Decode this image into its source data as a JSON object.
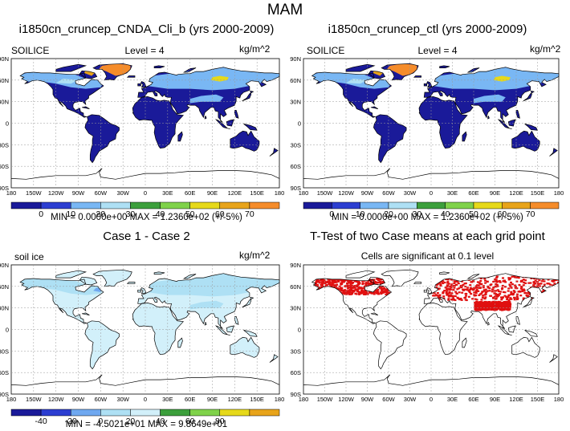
{
  "main_title": "MAM",
  "colors": {
    "land_legend": [
      "#1a1a99",
      "#2c3ed1",
      "#79b7f4",
      "#aee0f4",
      "#3c9f3c",
      "#7fd24a",
      "#e6d91a",
      "#e8a41a",
      "#f58c2a"
    ],
    "diff_legend": [
      "#1a1a99",
      "#2c3ed1",
      "#6fa8f0",
      "#aee0f4",
      "#d2f0fa",
      "#3c9f3c",
      "#7fd24a",
      "#e6d91a",
      "#e8a41a"
    ],
    "significance": "#e01010"
  },
  "grid": {
    "lon_labels": [
      "180",
      "150W",
      "120W",
      "90W",
      "60W",
      "30W",
      "0",
      "30E",
      "60E",
      "90E",
      "120E",
      "150E",
      "180"
    ],
    "lat_labels": [
      "90N",
      "60N",
      "30N",
      "0",
      "30S",
      "60S",
      "90S"
    ]
  },
  "panels": [
    {
      "id": "p1",
      "title": "i1850cn_cruncep_CNDA_Cli_b (yrs 2000-2009)",
      "left_label": "SOILICE",
      "center_label": "Level = 4",
      "right_label": "kg/m^2",
      "colorbar_ticks": [
        "0",
        "10",
        "20",
        "30",
        "40",
        "50",
        "60",
        "70"
      ],
      "stats": "MIN = 0.0000e+00 MAX = 1.2360e+02 (+/-5%)"
    },
    {
      "id": "p2",
      "title": "i1850cn_cruncep_ctl (yrs 2000-2009)",
      "left_label": "SOILICE",
      "center_label": "Level = 4",
      "right_label": "kg/m^2",
      "colorbar_ticks": [
        "0",
        "10",
        "20",
        "30",
        "40",
        "50",
        "60",
        "70"
      ],
      "stats": "MIN = 0.0000e+00 MAX = 1.2360e+02 (+/-5%)"
    },
    {
      "id": "p3",
      "title": "Case 1 - Case 2",
      "left_label": "soil ice",
      "center_label": "",
      "right_label": "kg/m^2",
      "colorbar_ticks": [
        "-40",
        "-20",
        "0",
        "20",
        "40",
        "60",
        "80"
      ],
      "stats": "MIN = -4.5021e+01 MAX = 9.8649e+01"
    },
    {
      "id": "p4",
      "title": "T-Test of two Case means at each grid point",
      "left_label": "",
      "center_label": "Cells are significant at 0.1 level",
      "right_label": "",
      "colorbar_ticks": [],
      "stats": ""
    }
  ]
}
